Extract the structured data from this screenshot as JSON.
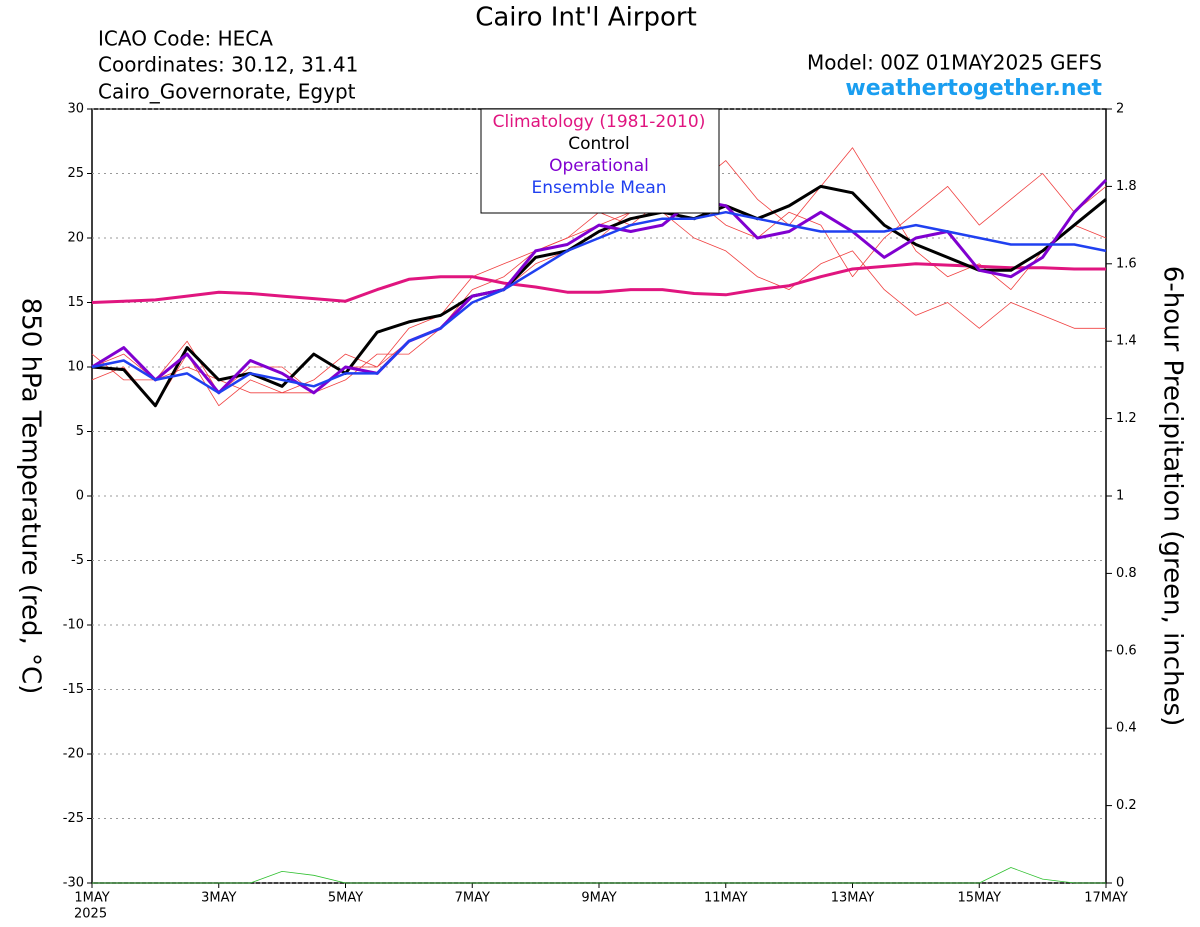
{
  "chart_data": {
    "type": "line",
    "title": "Cairo Int'l Airport",
    "info_left": [
      "ICAO Code: HECA",
      "Coordinates: 30.12, 31.41",
      "Cairo_Governorate, Egypt"
    ],
    "model": "Model: 00Z 01MAY2025 GEFS",
    "site": "weathertogether.net",
    "ylabel": "850 hPa Temperature (red, °C)",
    "y2label": "6-hour Precipitation (green, inches)",
    "year": "2025",
    "x": [
      0,
      0.5,
      1,
      1.5,
      2,
      2.5,
      3,
      3.5,
      4,
      4.5,
      5,
      5.5,
      6,
      6.5,
      7,
      7.5,
      8,
      8.5,
      9,
      9.5,
      10,
      10.5,
      11,
      11.5,
      12,
      12.5,
      13,
      13.5,
      14,
      14.5,
      15,
      15.5,
      16
    ],
    "xlim": [
      0,
      16
    ],
    "xticks": [
      {
        "value": 0,
        "label": "1MAY"
      },
      {
        "value": 2,
        "label": "3MAY"
      },
      {
        "value": 4,
        "label": "5MAY"
      },
      {
        "value": 6,
        "label": "7MAY"
      },
      {
        "value": 8,
        "label": "9MAY"
      },
      {
        "value": 10,
        "label": "11MAY"
      },
      {
        "value": 12,
        "label": "13MAY"
      },
      {
        "value": 14,
        "label": "15MAY"
      },
      {
        "value": 16,
        "label": "17MAY"
      }
    ],
    "ylim": [
      -30,
      30
    ],
    "yticks": [
      30,
      25,
      20,
      15,
      10,
      5,
      0,
      -5,
      -10,
      -15,
      -20,
      -25,
      -30
    ],
    "y2lim": [
      0,
      2
    ],
    "y2ticks": [
      2,
      1.8,
      1.6,
      1.4,
      1.2,
      1,
      0.8,
      0.6,
      0.4,
      0.2,
      0
    ],
    "grid": true,
    "series": [
      {
        "color": "#f04040",
        "values": [
          11,
          9,
          9,
          12,
          8,
          10,
          10,
          8,
          10,
          10,
          12,
          13,
          16,
          17,
          19,
          20,
          22,
          21,
          23,
          24,
          26,
          23,
          21,
          24,
          27,
          23,
          19,
          17,
          18,
          16,
          19,
          21,
          20
        ]
      },
      {
        "color": "#f04040",
        "values": [
          9,
          10,
          7,
          11,
          7,
          9,
          8,
          8,
          9,
          11,
          11,
          13,
          15,
          16,
          18,
          19,
          20,
          22,
          22,
          20,
          19,
          17,
          16,
          18,
          19,
          16,
          14,
          15,
          13,
          15,
          14,
          13,
          13
        ]
      },
      {
        "color": "#f04040",
        "values": [
          10,
          11,
          9,
          10,
          9,
          8,
          8,
          9,
          11,
          10,
          13,
          14,
          17,
          18,
          19,
          20,
          21,
          22,
          25,
          23,
          21,
          20,
          22,
          21,
          17,
          20,
          22,
          24,
          21,
          23,
          25,
          22,
          24
        ]
      },
      {
        "color": "#30c030",
        "axis": "y2",
        "values": [
          0,
          0,
          0,
          0,
          0,
          0,
          0.03,
          0.02,
          0,
          0,
          0,
          0,
          0,
          0,
          0,
          0,
          0,
          0,
          0,
          0,
          0,
          0,
          0,
          0,
          0,
          0,
          0,
          0,
          0,
          0.04,
          0.01,
          0,
          0
        ]
      },
      {
        "name": "Climatology (1981-2010)",
        "color": "#e0157f",
        "values": [
          15,
          15.1,
          15.2,
          15.5,
          15.8,
          15.7,
          15.5,
          15.3,
          15.1,
          16,
          16.8,
          17,
          17,
          16.5,
          16.2,
          15.8,
          15.8,
          16,
          16,
          15.7,
          15.6,
          16,
          16.3,
          17,
          17.6,
          17.8,
          18,
          17.9,
          17.8,
          17.7,
          17.7,
          17.6,
          17.6
        ]
      },
      {
        "name": "Control",
        "color": "#000000",
        "values": [
          10,
          9.8,
          7,
          11.5,
          9,
          9.5,
          8.5,
          11,
          9.5,
          12.7,
          13.5,
          14,
          15.5,
          16,
          18.5,
          19,
          20.5,
          21.5,
          22,
          21.5,
          22.5,
          21.5,
          22.5,
          24,
          23.5,
          21,
          19.5,
          18.5,
          17.5,
          17.5,
          19,
          21,
          23
        ]
      },
      {
        "name": "Operational",
        "color": "#8000d0",
        "values": [
          10,
          11.5,
          9,
          11,
          8,
          10.5,
          9.5,
          8,
          10,
          9.5,
          12,
          13,
          15.5,
          16,
          19,
          19.5,
          21,
          20.5,
          21,
          23,
          22.5,
          20,
          20.5,
          22,
          20.5,
          18.5,
          20,
          20.5,
          17.5,
          17,
          18.5,
          22,
          24.5
        ]
      },
      {
        "name": "Ensemble Mean",
        "color": "#2040f0",
        "values": [
          10,
          10.5,
          9,
          9.5,
          8,
          9.5,
          9,
          8.5,
          9.5,
          9.5,
          12,
          13,
          15,
          16,
          17.5,
          19,
          20,
          21,
          21.5,
          21.5,
          22,
          21.5,
          21,
          20.5,
          20.5,
          20.5,
          21,
          20.5,
          20,
          19.5,
          19.5,
          19.5,
          19
        ]
      }
    ]
  }
}
